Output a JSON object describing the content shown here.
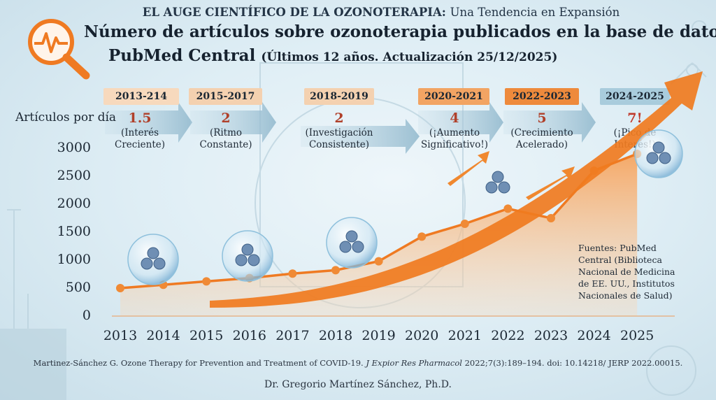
{
  "header": {
    "title_main": "EL AUGE CIENTÍFICO DE LA OZONOTERAPIA:",
    "title_sub": "Una Tendencia en Expansión",
    "subtitle_line1": "Número de artículos sobre ozonoterapia publicados en la base de datos",
    "subtitle_line2": "PubMed Central",
    "subtitle_note": "(Últimos 12 años. Actualización 25/12/2025)"
  },
  "phases": [
    {
      "period": "2013-214",
      "value": "1.5",
      "note": "(Interés Creciente)"
    },
    {
      "period": "2015-2017",
      "value": "2",
      "note": "(Ritmo Constante)"
    },
    {
      "period": "2018-2019",
      "value": "2",
      "note": "(Investigación Consistente)"
    },
    {
      "period": "2020-2021",
      "value": "4",
      "note": "(¡Aumento Significativo!)"
    },
    {
      "period": "2022-2023",
      "value": "5",
      "note": "(Crecimiento Acelerado)"
    },
    {
      "period": "2024-2025",
      "value": "7!",
      "note": "(¡Pico de Interés!)"
    }
  ],
  "chart_data": {
    "type": "line",
    "ylabel": "Artículos por día",
    "x": [
      "2013",
      "2014",
      "2015",
      "2016",
      "2017",
      "2018",
      "2019",
      "2020",
      "2021",
      "2022",
      "2023",
      "2024",
      "2025"
    ],
    "yticks": [
      "3000",
      "2500",
      "2000",
      "1500",
      "1000",
      "500",
      "0"
    ],
    "ylim": [
      0,
      3000
    ],
    "series": [
      {
        "values": [
          500,
          560,
          620,
          680,
          760,
          820,
          980,
          1420,
          1650,
          1920,
          1750,
          2600,
          2900
        ]
      }
    ],
    "colors": {
      "line": "#ef7a22",
      "marker": "#f08a35",
      "fill": "#f6a560"
    }
  },
  "sources": "Fuentes: PubMed Central (Biblioteca Nacional de Medicina de EE. UU., Institutos Nacionales de Salud)",
  "citation": {
    "prefix": "Martinez-Sánchez G. Ozone Therapy for Prevention and Treatment of COVID-19.",
    "journal": "J Expior Res Pharmacol",
    "suffix": "2022;7(3):189–194. doi: 10.14218/ JERP 2022.00015."
  },
  "author": "Dr. Gregorio Martínez Sánchez, Ph.D.",
  "icons": {
    "logo": "magnifier-pulse-icon",
    "molecule": "ozone-molecule-icon"
  }
}
